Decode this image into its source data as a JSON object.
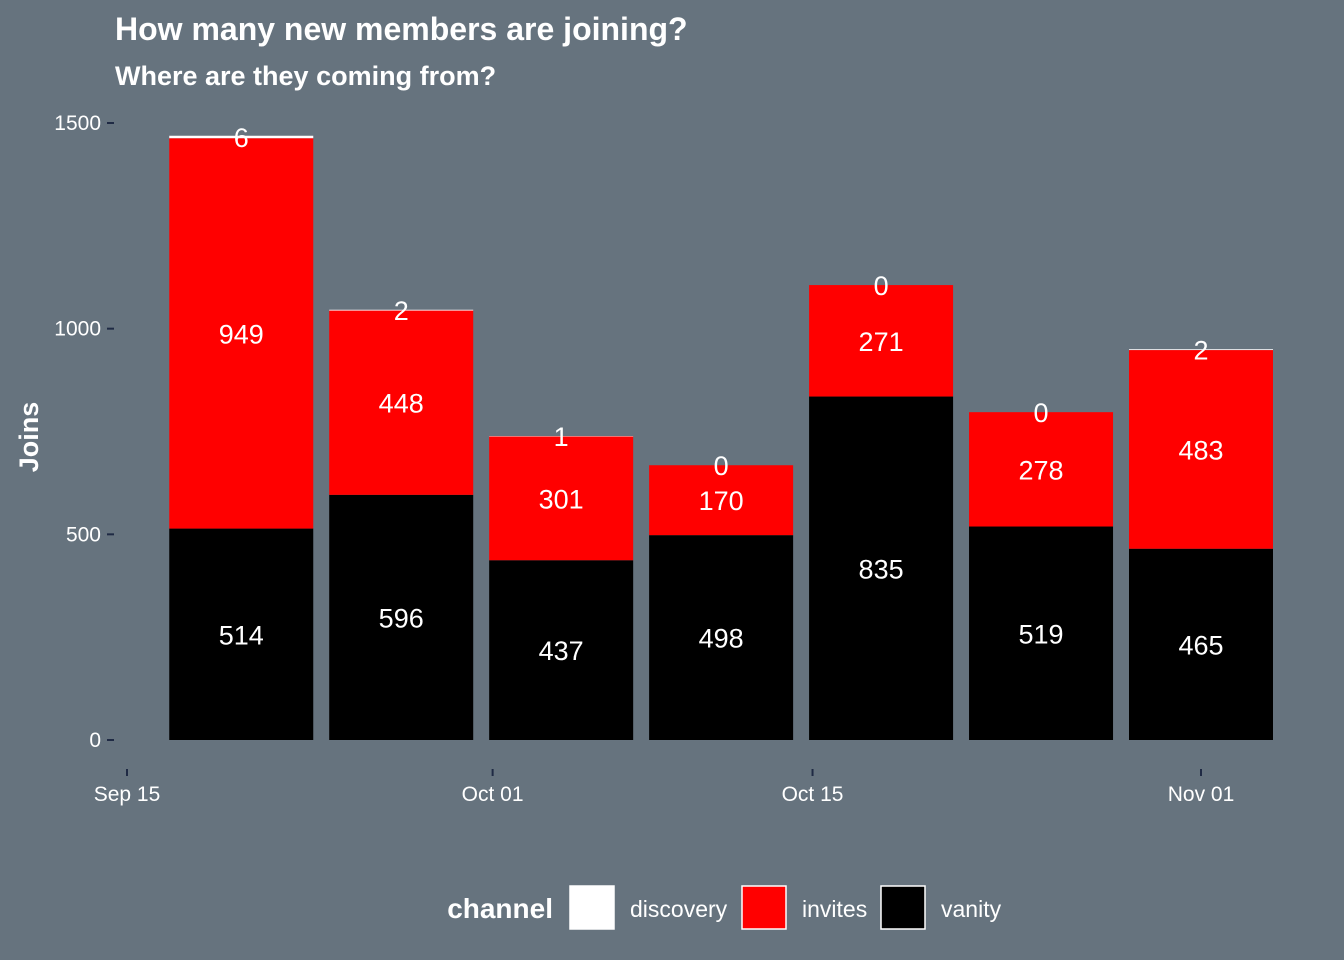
{
  "chart_data": {
    "type": "bar",
    "stacked": true,
    "title": "How many new members are joining?",
    "subtitle": "Where are they coming from?",
    "xlabel": "",
    "ylabel": "Joins",
    "ylim": [
      0,
      1500
    ],
    "y_ticks": [
      0,
      500,
      1000,
      1500
    ],
    "x_ticks": [
      {
        "label": "Sep 15",
        "date": "2021-09-15"
      },
      {
        "label": "Oct 01",
        "date": "2021-10-01"
      },
      {
        "label": "Oct 15",
        "date": "2021-10-15"
      },
      {
        "label": "Nov 01",
        "date": "2021-11-01"
      }
    ],
    "x": [
      "2021-09-20",
      "2021-09-27",
      "2021-10-04",
      "2021-10-11",
      "2021-10-18",
      "2021-10-25",
      "2021-11-01"
    ],
    "series": [
      {
        "name": "vanity",
        "color": "#000000",
        "values": [
          514,
          596,
          437,
          498,
          835,
          519,
          465
        ]
      },
      {
        "name": "invites",
        "color": "#ff0000",
        "values": [
          949,
          448,
          301,
          170,
          271,
          278,
          483
        ]
      },
      {
        "name": "discovery",
        "color": "#ffffff",
        "values": [
          6,
          2,
          1,
          0,
          0,
          0,
          2
        ]
      }
    ],
    "grid": false,
    "legend": {
      "title": "channel",
      "position": "bottom",
      "order": [
        "discovery",
        "invites",
        "vanity"
      ]
    }
  },
  "colors": {
    "background": "#66737e",
    "text": "#ffffff"
  }
}
